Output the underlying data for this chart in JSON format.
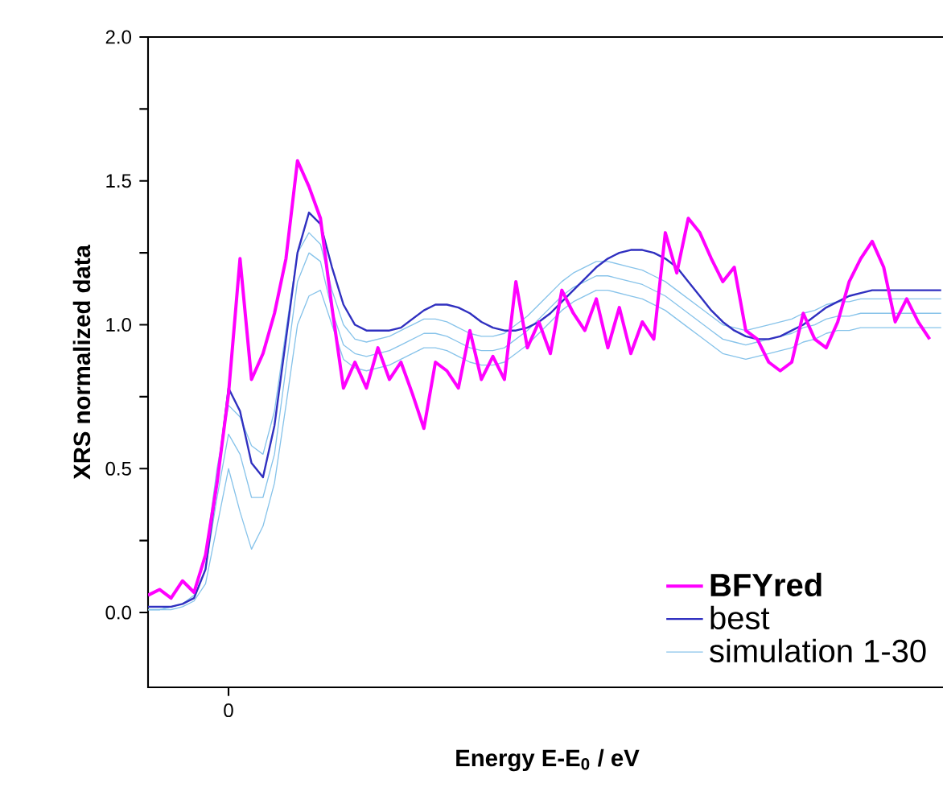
{
  "chart_data": {
    "type": "line",
    "xlabel": "Energy E-E$_{0}$ / eV",
    "ylabel": "XRS normalized data",
    "categories": [
      null,
      null,
      null,
      null,
      null,
      null,
      null,
      "0",
      null,
      null,
      null,
      null,
      null,
      null,
      null,
      null,
      null,
      null,
      null,
      null,
      null,
      null,
      null,
      null,
      null,
      null,
      null,
      null,
      null,
      null,
      null,
      null,
      null,
      null,
      null,
      null,
      null,
      null,
      null,
      null,
      null,
      null,
      null,
      null,
      null,
      null,
      null,
      null,
      null,
      null,
      null,
      null,
      null,
      null,
      null,
      null,
      null,
      null,
      null,
      null,
      null,
      null,
      null,
      null,
      null,
      null,
      null,
      null,
      null,
      null
    ],
    "ylim": [
      -0.26,
      2.0
    ],
    "yticks": [
      {
        "value": 0,
        "label": "0.0"
      },
      {
        "value": 0.25,
        "label": null
      },
      {
        "value": 0.5,
        "label": "0.5"
      },
      {
        "value": 0.75,
        "label": null
      },
      {
        "value": 1,
        "label": "1.0"
      },
      {
        "value": 1.25,
        "label": null
      },
      {
        "value": 1.5,
        "label": "1.5"
      },
      {
        "value": 1.75,
        "label": null
      },
      {
        "value": 2,
        "label": "2.0"
      }
    ],
    "legend": "bottom right",
    "series": [
      {
        "name": "BFYred",
        "color": "#ff00ff",
        "values": [
          0.06,
          0.08,
          0.05,
          0.11,
          0.07,
          0.2,
          0.45,
          0.76,
          1.23,
          0.81,
          0.9,
          1.04,
          1.23,
          1.57,
          1.48,
          1.37,
          1.06,
          0.78,
          0.87,
          0.78,
          0.92,
          0.81,
          0.87,
          0.76,
          0.64,
          0.87,
          0.84,
          0.78,
          0.98,
          0.81,
          0.89,
          0.81,
          1.15,
          0.92,
          1.01,
          0.9,
          1.12,
          1.04,
          0.98,
          1.09,
          0.92,
          1.06,
          0.9,
          1.01,
          0.95,
          1.32,
          1.18,
          1.37,
          1.32,
          1.23,
          1.15,
          1.2,
          0.98,
          0.95,
          0.87,
          0.84,
          0.87,
          1.04,
          0.95,
          0.92,
          1.01,
          1.15,
          1.23,
          1.29,
          1.2,
          1.01,
          1.09,
          1.01,
          0.95,
          null
        ]
      },
      {
        "name": "best",
        "color": "#3030c0",
        "values": [
          0.02,
          0.02,
          0.02,
          0.03,
          0.05,
          0.15,
          0.45,
          0.78,
          0.7,
          0.52,
          0.47,
          0.65,
          0.95,
          1.25,
          1.39,
          1.35,
          1.2,
          1.07,
          1.0,
          0.98,
          0.98,
          0.98,
          0.99,
          1.02,
          1.05,
          1.07,
          1.07,
          1.06,
          1.04,
          1.01,
          0.99,
          0.98,
          0.98,
          0.99,
          1.01,
          1.04,
          1.08,
          1.12,
          1.16,
          1.2,
          1.23,
          1.25,
          1.26,
          1.26,
          1.25,
          1.23,
          1.2,
          1.15,
          1.1,
          1.05,
          1.01,
          0.98,
          0.96,
          0.95,
          0.95,
          0.96,
          0.98,
          1.0,
          1.03,
          1.06,
          1.08,
          1.1,
          1.11,
          1.12,
          1.12,
          1.12,
          1.12,
          1.12,
          1.12,
          1.12
        ]
      },
      {
        "name": "simulation 1-30",
        "color": "#87c3ea",
        "values": [
          0.01,
          0.01,
          0.02,
          0.03,
          0.06,
          0.2,
          0.5,
          0.72,
          0.68,
          0.58,
          0.55,
          0.7,
          0.98,
          1.25,
          1.32,
          1.28,
          1.12,
          1.0,
          0.95,
          0.94,
          0.95,
          0.96,
          0.98,
          1.0,
          1.02,
          1.02,
          1.01,
          0.99,
          0.97,
          0.96,
          0.96,
          0.97,
          1.0,
          1.03,
          1.07,
          1.11,
          1.15,
          1.18,
          1.2,
          1.22,
          1.22,
          1.21,
          1.2,
          1.19,
          1.17,
          1.15,
          1.12,
          1.09,
          1.06,
          1.03,
          1.0,
          0.99,
          0.98,
          0.99,
          1.0,
          1.01,
          1.02,
          1.04,
          1.05,
          1.07,
          1.08,
          1.08,
          1.09,
          1.09,
          1.09,
          1.09,
          1.09,
          1.09,
          1.09,
          1.09
        ]
      },
      {
        "color": "#87c3ea",
        "values": [
          0.01,
          0.01,
          0.02,
          0.03,
          0.05,
          0.15,
          0.4,
          0.62,
          0.55,
          0.4,
          0.4,
          0.55,
          0.85,
          1.15,
          1.25,
          1.22,
          1.05,
          0.93,
          0.9,
          0.89,
          0.9,
          0.91,
          0.93,
          0.95,
          0.97,
          0.97,
          0.96,
          0.94,
          0.92,
          0.91,
          0.91,
          0.92,
          0.95,
          0.98,
          1.02,
          1.06,
          1.1,
          1.13,
          1.15,
          1.17,
          1.17,
          1.16,
          1.15,
          1.14,
          1.12,
          1.1,
          1.07,
          1.04,
          1.01,
          0.98,
          0.95,
          0.94,
          0.93,
          0.94,
          0.95,
          0.96,
          0.97,
          0.99,
          1.0,
          1.02,
          1.03,
          1.03,
          1.04,
          1.04,
          1.04,
          1.04,
          1.04,
          1.04,
          1.04,
          1.04
        ]
      },
      {
        "color": "#87c3ea",
        "values": [
          0.01,
          0.01,
          0.01,
          0.02,
          0.04,
          0.1,
          0.3,
          0.5,
          0.35,
          0.22,
          0.3,
          0.45,
          0.72,
          1.0,
          1.1,
          1.12,
          1.0,
          0.88,
          0.85,
          0.84,
          0.85,
          0.86,
          0.88,
          0.9,
          0.92,
          0.92,
          0.91,
          0.89,
          0.87,
          0.86,
          0.86,
          0.87,
          0.9,
          0.93,
          0.97,
          1.01,
          1.05,
          1.08,
          1.1,
          1.12,
          1.12,
          1.11,
          1.1,
          1.09,
          1.07,
          1.05,
          1.02,
          0.99,
          0.96,
          0.93,
          0.9,
          0.89,
          0.88,
          0.89,
          0.9,
          0.91,
          0.92,
          0.94,
          0.95,
          0.97,
          0.98,
          0.98,
          0.99,
          0.99,
          0.99,
          0.99,
          0.99,
          0.99,
          0.99,
          0.99
        ]
      }
    ]
  }
}
